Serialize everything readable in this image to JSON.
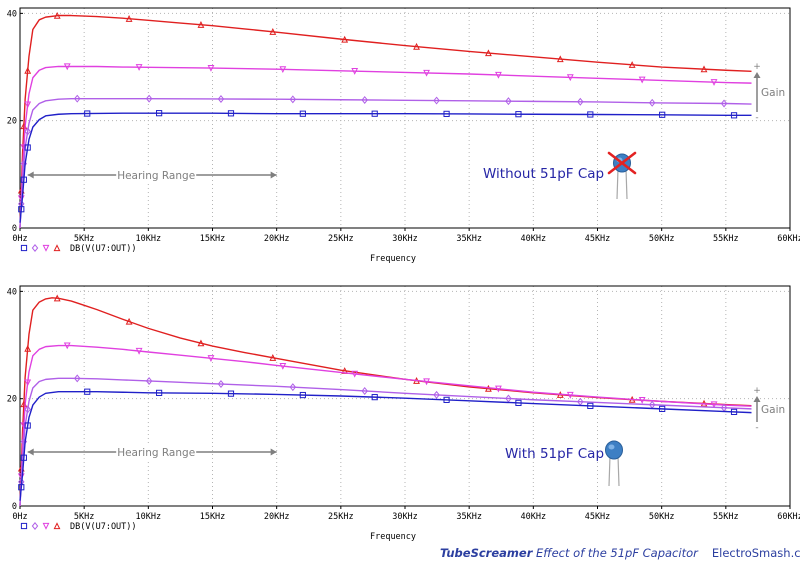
{
  "colors": {
    "axis": "#000000",
    "grid": "#b5b5b5",
    "range_arrow": "#7f7f7f",
    "annotation_text": "#2626a6",
    "footer_text": "#2c3fa0"
  },
  "chart_data": [
    {
      "type": "line",
      "xlabel": "Frequency",
      "x_ticks": [
        "0Hz",
        "5KHz",
        "10KHz",
        "15KHz",
        "20KHz",
        "25KHz",
        "30KHz",
        "35KHz",
        "40KHz",
        "45KHz",
        "50KHz",
        "55KHz",
        "60KHz"
      ],
      "y_ticks": [
        "40",
        "20",
        "0"
      ],
      "xlim": [
        0,
        60000
      ],
      "ylim": [
        0,
        41
      ],
      "grid": true,
      "legend": {
        "text": "DB(V(U7:OUT))",
        "position": "bottom-left"
      },
      "annotation": "Without 51pF Cap",
      "range_label": "Hearing Range",
      "gain_label": "Gain",
      "gain_plus": "+",
      "gain_minus": "-",
      "series": [
        {
          "color": "#e02020",
          "marker": "triangle-up",
          "points": [
            [
              0,
              0
            ],
            [
              200,
              14
            ],
            [
              400,
              24
            ],
            [
              700,
              32
            ],
            [
              1000,
              37
            ],
            [
              1500,
              38.8
            ],
            [
              2000,
              39.3
            ],
            [
              3000,
              39.6
            ],
            [
              4000,
              39.6
            ],
            [
              6000,
              39.4
            ],
            [
              8000,
              39.1
            ],
            [
              10000,
              38.7
            ],
            [
              12500,
              38.2
            ],
            [
              15000,
              37.7
            ],
            [
              17500,
              37.1
            ],
            [
              20000,
              36.5
            ],
            [
              25000,
              35.2
            ],
            [
              30000,
              34
            ],
            [
              35000,
              32.9
            ],
            [
              40000,
              31.9
            ],
            [
              45000,
              30.9
            ],
            [
              50000,
              30
            ],
            [
              55000,
              29.4
            ],
            [
              57000,
              29.2
            ]
          ]
        },
        {
          "color": "#e040e0",
          "marker": "triangle-down",
          "points": [
            [
              0,
              0
            ],
            [
              200,
              11
            ],
            [
              400,
              19
            ],
            [
              700,
              25
            ],
            [
              1000,
              28
            ],
            [
              1500,
              29.4
            ],
            [
              2000,
              29.9
            ],
            [
              3000,
              30.1
            ],
            [
              4000,
              30.1
            ],
            [
              6000,
              30.1
            ],
            [
              8000,
              30
            ],
            [
              10000,
              29.95
            ],
            [
              15000,
              29.8
            ],
            [
              20000,
              29.6
            ],
            [
              25000,
              29.3
            ],
            [
              30000,
              29
            ],
            [
              35000,
              28.7
            ],
            [
              40000,
              28.3
            ],
            [
              45000,
              27.9
            ],
            [
              50000,
              27.5
            ],
            [
              55000,
              27.1
            ],
            [
              57000,
              27
            ]
          ]
        },
        {
          "color": "#b060e8",
          "marker": "diamond",
          "points": [
            [
              0,
              0
            ],
            [
              200,
              9
            ],
            [
              400,
              15
            ],
            [
              700,
              19.5
            ],
            [
              1000,
              22
            ],
            [
              1500,
              23.2
            ],
            [
              2000,
              23.7
            ],
            [
              3000,
              24
            ],
            [
              4000,
              24.1
            ],
            [
              8000,
              24.1
            ],
            [
              10000,
              24.1
            ],
            [
              15000,
              24.05
            ],
            [
              20000,
              24
            ],
            [
              25000,
              23.9
            ],
            [
              30000,
              23.8
            ],
            [
              35000,
              23.7
            ],
            [
              40000,
              23.6
            ],
            [
              45000,
              23.5
            ],
            [
              50000,
              23.3
            ],
            [
              55000,
              23.2
            ],
            [
              57000,
              23.1
            ]
          ]
        },
        {
          "color": "#2020c8",
          "marker": "square",
          "points": [
            [
              0,
              1
            ],
            [
              200,
              6
            ],
            [
              400,
              12
            ],
            [
              700,
              16.5
            ],
            [
              1000,
              18.8
            ],
            [
              1500,
              20.2
            ],
            [
              2000,
              20.9
            ],
            [
              3000,
              21.2
            ],
            [
              4000,
              21.3
            ],
            [
              8000,
              21.4
            ],
            [
              10000,
              21.4
            ],
            [
              15000,
              21.4
            ],
            [
              20000,
              21.3
            ],
            [
              25000,
              21.3
            ],
            [
              30000,
              21.3
            ],
            [
              35000,
              21.25
            ],
            [
              40000,
              21.2
            ],
            [
              45000,
              21.15
            ],
            [
              50000,
              21.1
            ],
            [
              55000,
              21
            ],
            [
              57000,
              21
            ]
          ]
        }
      ]
    },
    {
      "type": "line",
      "xlabel": "Frequency",
      "x_ticks": [
        "0Hz",
        "5KHz",
        "10KHz",
        "15KHz",
        "20KHz",
        "25KHz",
        "30KHz",
        "35KHz",
        "40KHz",
        "45KHz",
        "50KHz",
        "55KHz",
        "60KHz"
      ],
      "y_ticks": [
        "40",
        "20",
        "0"
      ],
      "xlim": [
        0,
        60000
      ],
      "ylim": [
        0,
        41
      ],
      "grid": true,
      "legend": {
        "text": "DB(V(U7:OUT))",
        "position": "bottom-left"
      },
      "annotation": "With 51pF Cap",
      "range_label": "Hearing Range",
      "gain_label": "Gain",
      "gain_plus": "+",
      "gain_minus": "-",
      "series": [
        {
          "color": "#e02020",
          "marker": "triangle-up",
          "points": [
            [
              0,
              0
            ],
            [
              200,
              14
            ],
            [
              400,
              24
            ],
            [
              700,
              32
            ],
            [
              1000,
              36.5
            ],
            [
              1500,
              38
            ],
            [
              2000,
              38.6
            ],
            [
              2500,
              38.8
            ],
            [
              3000,
              38.7
            ],
            [
              4000,
              38.2
            ],
            [
              5000,
              37.4
            ],
            [
              6000,
              36.6
            ],
            [
              8000,
              34.8
            ],
            [
              10000,
              33.1
            ],
            [
              12500,
              31.3
            ],
            [
              15000,
              29.8
            ],
            [
              17500,
              28.6
            ],
            [
              20000,
              27.5
            ],
            [
              25000,
              25.3
            ],
            [
              30000,
              23.6
            ],
            [
              35000,
              22.2
            ],
            [
              40000,
              21.1
            ],
            [
              45000,
              20.2
            ],
            [
              50000,
              19.5
            ],
            [
              55000,
              18.9
            ],
            [
              57000,
              18.7
            ]
          ]
        },
        {
          "color": "#e040e0",
          "marker": "triangle-down",
          "points": [
            [
              0,
              0
            ],
            [
              200,
              11
            ],
            [
              400,
              19
            ],
            [
              700,
              25
            ],
            [
              1000,
              28
            ],
            [
              1500,
              29.2
            ],
            [
              2000,
              29.7
            ],
            [
              3000,
              29.9
            ],
            [
              4000,
              29.9
            ],
            [
              6000,
              29.6
            ],
            [
              8000,
              29.2
            ],
            [
              10000,
              28.7
            ],
            [
              12500,
              28.1
            ],
            [
              15000,
              27.5
            ],
            [
              17500,
              26.9
            ],
            [
              20000,
              26.2
            ],
            [
              25000,
              24.9
            ],
            [
              30000,
              23.6
            ],
            [
              35000,
              22.4
            ],
            [
              40000,
              21.2
            ],
            [
              45000,
              20.3
            ],
            [
              50000,
              19.5
            ],
            [
              55000,
              18.8
            ],
            [
              57000,
              18.6
            ]
          ]
        },
        {
          "color": "#b060e8",
          "marker": "diamond",
          "points": [
            [
              0,
              0
            ],
            [
              200,
              9
            ],
            [
              400,
              15
            ],
            [
              700,
              19.5
            ],
            [
              1000,
              22
            ],
            [
              1500,
              23.2
            ],
            [
              2000,
              23.6
            ],
            [
              3000,
              23.8
            ],
            [
              4000,
              23.8
            ],
            [
              6000,
              23.7
            ],
            [
              8000,
              23.5
            ],
            [
              10000,
              23.3
            ],
            [
              15000,
              22.8
            ],
            [
              20000,
              22.3
            ],
            [
              25000,
              21.7
            ],
            [
              30000,
              21
            ],
            [
              35000,
              20.4
            ],
            [
              40000,
              19.8
            ],
            [
              45000,
              19.3
            ],
            [
              50000,
              18.8
            ],
            [
              55000,
              18.3
            ],
            [
              57000,
              18.1
            ]
          ]
        },
        {
          "color": "#2020c8",
          "marker": "square",
          "points": [
            [
              0,
              1
            ],
            [
              200,
              6
            ],
            [
              400,
              12
            ],
            [
              700,
              16.5
            ],
            [
              1000,
              18.8
            ],
            [
              1500,
              20.3
            ],
            [
              2000,
              21
            ],
            [
              3000,
              21.3
            ],
            [
              4000,
              21.3
            ],
            [
              6000,
              21.3
            ],
            [
              8000,
              21.2
            ],
            [
              10000,
              21.1
            ],
            [
              15000,
              21
            ],
            [
              20000,
              20.8
            ],
            [
              25000,
              20.5
            ],
            [
              30000,
              20.1
            ],
            [
              35000,
              19.6
            ],
            [
              40000,
              19.1
            ],
            [
              45000,
              18.6
            ],
            [
              50000,
              18.1
            ],
            [
              55000,
              17.6
            ],
            [
              57000,
              17.4
            ]
          ]
        }
      ]
    }
  ],
  "footer": {
    "brand": "TubeScreamer",
    "title": " Effect of the 51pF Capacitor",
    "site": "ElectroSmash.com"
  }
}
